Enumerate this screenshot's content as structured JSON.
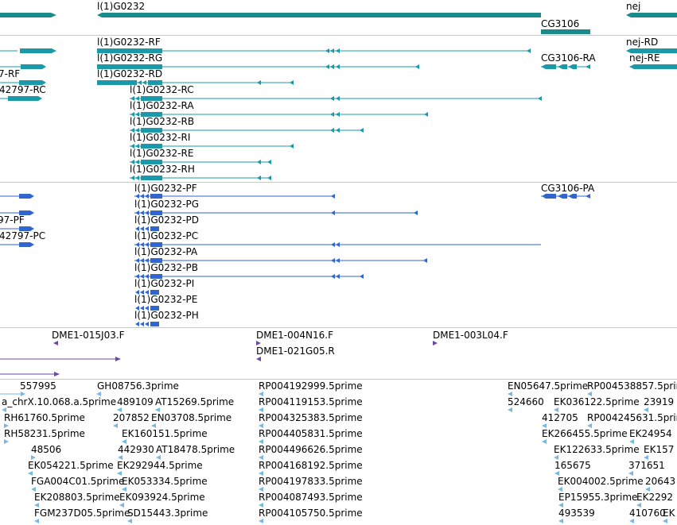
{
  "colors": {
    "gene": "#1a8a8a",
    "transcript": "#1a9aa8",
    "protein": "#3366cc",
    "clone": "#6a4aa8",
    "est": "#7ab8e0",
    "divider": "#c8c8c8"
  },
  "tracks": {
    "genes": [
      {
        "name": "l(1)G0232",
        "fragment": false
      },
      {
        "name": "CG3106",
        "fragment": false
      },
      {
        "name": "nej",
        "fragment": false
      }
    ],
    "transcripts": [
      {
        "name": "l(1)G0232-RF"
      },
      {
        "name": "l(1)G0232-RG"
      },
      {
        "name": "l(1)G0232-RD"
      },
      {
        "name": "l(1)G0232-RC"
      },
      {
        "name": "l(1)G0232-RA"
      },
      {
        "name": "l(1)G0232-RB"
      },
      {
        "name": "l(1)G0232-RI"
      },
      {
        "name": "l(1)G0232-RE"
      },
      {
        "name": "l(1)G0232-RH"
      },
      {
        "name": "7-RF"
      },
      {
        "name": "42797-RC"
      },
      {
        "name": "CG3106-RA"
      },
      {
        "name": "nej-RD"
      },
      {
        "name": "nej-RE"
      }
    ],
    "proteins": [
      {
        "name": "l(1)G0232-PF"
      },
      {
        "name": "l(1)G0232-PG"
      },
      {
        "name": "l(1)G0232-PD"
      },
      {
        "name": "l(1)G0232-PC"
      },
      {
        "name": "l(1)G0232-PA"
      },
      {
        "name": "l(1)G0232-PB"
      },
      {
        "name": "l(1)G0232-PI"
      },
      {
        "name": "l(1)G0232-PE"
      },
      {
        "name": "l(1)G0232-PH"
      },
      {
        "name": "97-PF"
      },
      {
        "name": "42797-PC"
      },
      {
        "name": "CG3106-PA"
      }
    ],
    "clones": [
      {
        "name": "DME1-015J03.F"
      },
      {
        "name": "DME1-004N16.F"
      },
      {
        "name": "DME1-021G05.R"
      },
      {
        "name": "DME1-003L04.F"
      }
    ],
    "ests": [
      "557995",
      "GH08756.3prime",
      "RP004192999.5prime",
      "EN05647.5prime",
      "RP004538857.5prime",
      "a_chrX.10.068.a.5prime",
      "489109",
      "AT15269.5prime",
      "RP004119153.5prime",
      "524660",
      "EK036122.5prime",
      "23919",
      "RH61760.5prime",
      "207852",
      "EN03708.5prime",
      "RP004325383.5prime",
      "412705",
      "RP004245631.5prime",
      "RH58231.5prime",
      "EK160151.5prime",
      "RP004405831.5prime",
      "EK266455.5prime",
      "EK24954",
      "48506",
      "442930",
      "AT18478.5prime",
      "RP004496626.5prime",
      "EK122633.5prime",
      "EK157",
      "EK054221.5prime",
      "EK292944.5prime",
      "RP004168192.5prime",
      "165675",
      "371651",
      "FGA004C01.5prime",
      "EK053334.5prime",
      "RP004197833.5prime",
      "EK004002.5prime",
      "20643",
      "EK208803.5prime",
      "EK093924.5prime",
      "RP004087493.5prime",
      "EP15955.3prime",
      "EK2292",
      "FGM237D05.5prime",
      "SD15443.3prime",
      "RP004105750.5prime",
      "493539",
      "410760",
      "EK"
    ]
  }
}
